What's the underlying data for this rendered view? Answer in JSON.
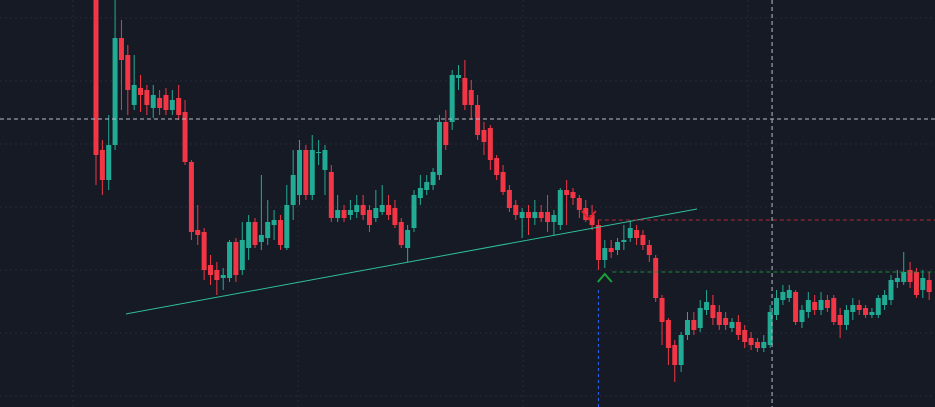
{
  "chart_data": {
    "type": "candlestick",
    "up_color": "#22ab94",
    "down_color": "#f23645",
    "ylim": [
      0,
      407
    ],
    "open": [
      407,
      257,
      227,
      262,
      369,
      352,
      302,
      319,
      317,
      299,
      309,
      312,
      297,
      309,
      295,
      245,
      177,
      175,
      142,
      137,
      129,
      129,
      165,
      137,
      159,
      185,
      165,
      169,
      182,
      187,
      159,
      202,
      212,
      257,
      212,
      255,
      237,
      235,
      189,
      197,
      192,
      195,
      202,
      197,
      189,
      195,
      202,
      199,
      185,
      159,
      179,
      209,
      217,
      222,
      232,
      285,
      285,
      329,
      329,
      317,
      302,
      277,
      279,
      249,
      235,
      217,
      202,
      189,
      195,
      189,
      195,
      195,
      185,
      182,
      217,
      215,
      209,
      199,
      192,
      182,
      147,
      159,
      157,
      165,
      169,
      177,
      172,
      162,
      149,
      109,
      87,
      62,
      42,
      72,
      87,
      79,
      97,
      102,
      95,
      89,
      79,
      85,
      77,
      69,
      65,
      59,
      62,
      92,
      107,
      109,
      115,
      85,
      95,
      105,
      97,
      107,
      109,
      92,
      82,
      95,
      102,
      99,
      92,
      92,
      102,
      107,
      125,
      125,
      137,
      135,
      117,
      127
    ],
    "high": [
      407,
      267,
      292,
      407,
      387,
      362,
      352,
      332,
      322,
      322,
      317,
      319,
      317,
      322,
      307,
      247,
      202,
      179,
      152,
      145,
      139,
      167,
      169,
      185,
      192,
      189,
      232,
      207,
      197,
      192,
      222,
      257,
      267,
      262,
      272,
      267,
      262,
      242,
      212,
      202,
      207,
      212,
      212,
      202,
      217,
      222,
      212,
      207,
      189,
      182,
      217,
      232,
      232,
      239,
      292,
      297,
      337,
      342,
      347,
      327,
      312,
      285,
      282,
      252,
      242,
      222,
      207,
      199,
      202,
      207,
      202,
      212,
      197,
      219,
      227,
      219,
      212,
      207,
      202,
      187,
      167,
      167,
      169,
      182,
      187,
      182,
      177,
      167,
      152,
      112,
      89,
      67,
      75,
      95,
      95,
      107,
      117,
      112,
      102,
      95,
      89,
      92,
      82,
      75,
      69,
      72,
      102,
      117,
      122,
      122,
      117,
      102,
      115,
      112,
      115,
      112,
      112,
      99,
      102,
      109,
      107,
      102,
      99,
      112,
      117,
      132,
      137,
      155,
      145,
      139,
      137,
      135
    ],
    "low": [
      222,
      212,
      217,
      257,
      297,
      292,
      297,
      295,
      292,
      289,
      292,
      292,
      292,
      287,
      242,
      167,
      162,
      127,
      122,
      112,
      117,
      125,
      125,
      132,
      147,
      159,
      157,
      162,
      167,
      157,
      157,
      187,
      202,
      207,
      207,
      242,
      212,
      185,
      185,
      185,
      187,
      189,
      187,
      175,
      185,
      192,
      187,
      179,
      159,
      145,
      175,
      202,
      212,
      217,
      227,
      257,
      277,
      317,
      297,
      287,
      267,
      252,
      237,
      227,
      212,
      195,
      187,
      169,
      172,
      182,
      185,
      175,
      172,
      177,
      182,
      202,
      189,
      185,
      177,
      137,
      139,
      149,
      152,
      157,
      165,
      162,
      157,
      145,
      105,
      62,
      42,
      25,
      35,
      67,
      72,
      75,
      92,
      82,
      77,
      77,
      75,
      67,
      59,
      57,
      55,
      55,
      59,
      87,
      102,
      105,
      82,
      79,
      89,
      92,
      92,
      95,
      82,
      69,
      77,
      87,
      92,
      89,
      89,
      89,
      97,
      102,
      119,
      122,
      119,
      109,
      109,
      107
    ],
    "close": [
      252,
      227,
      262,
      369,
      347,
      317,
      322,
      312,
      302,
      312,
      299,
      297,
      307,
      292,
      245,
      175,
      172,
      137,
      132,
      127,
      132,
      165,
      132,
      167,
      185,
      162,
      172,
      185,
      187,
      162,
      202,
      232,
      257,
      212,
      257,
      255,
      257,
      189,
      197,
      189,
      197,
      202,
      192,
      182,
      199,
      202,
      192,
      182,
      162,
      177,
      212,
      219,
      225,
      235,
      285,
      262,
      332,
      332,
      302,
      302,
      272,
      265,
      247,
      232,
      215,
      199,
      192,
      195,
      189,
      195,
      189,
      185,
      192,
      217,
      212,
      209,
      197,
      187,
      182,
      147,
      159,
      155,
      165,
      167,
      179,
      169,
      162,
      152,
      109,
      85,
      59,
      42,
      72,
      87,
      77,
      99,
      105,
      89,
      82,
      82,
      85,
      72,
      65,
      62,
      59,
      65,
      95,
      109,
      115,
      117,
      85,
      97,
      107,
      97,
      107,
      99,
      85,
      82,
      97,
      102,
      97,
      92,
      95,
      109,
      112,
      127,
      129,
      135,
      125,
      112,
      129,
      115
    ],
    "trendline": {
      "x": [
        4.7,
        94.5
      ],
      "values": [
        93,
        198
      ],
      "color": "#2fbf9a"
    },
    "levels": [
      {
        "x": 78.9,
        "value": 187,
        "color": "#b22833"
      },
      {
        "x": 81.2,
        "value": 135,
        "color": "#1e8a3a"
      }
    ],
    "signal_line": {
      "x": 79,
      "value": 117,
      "color": "#2962ff"
    },
    "markers": [
      {
        "x": 77.5,
        "value": 192,
        "direction": "down",
        "color": "#e0242f"
      },
      {
        "x": 80,
        "value": 129,
        "direction": "up",
        "color": "#18a33a"
      }
    ],
    "crosshair": {
      "x": 106.3,
      "value": 288
    }
  }
}
